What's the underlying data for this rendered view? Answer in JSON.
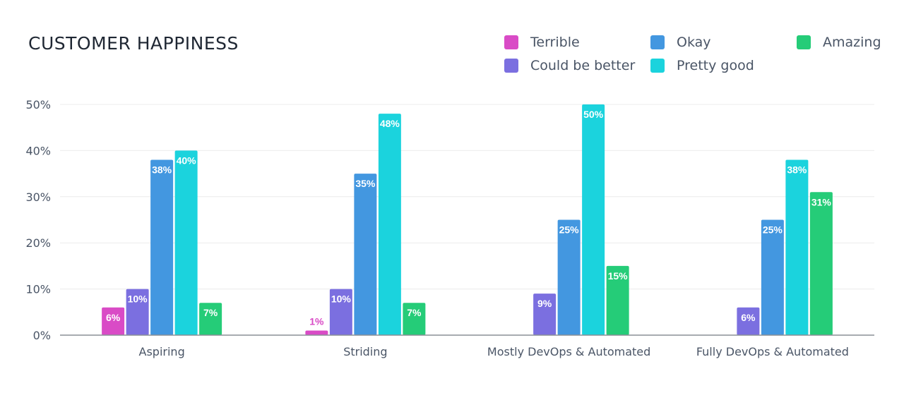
{
  "chart_data": {
    "type": "bar",
    "title": "CUSTOMER HAPPINESS",
    "categories": [
      "Aspiring",
      "Striding",
      "Mostly DevOps & Automated",
      "Fully DevOps & Automated"
    ],
    "ylim": [
      0,
      50
    ],
    "yticks": [
      0,
      10,
      20,
      30,
      40,
      50
    ],
    "ytick_labels": [
      "0%",
      "10%",
      "20%",
      "30%",
      "40%",
      "50%"
    ],
    "grid": true,
    "legend_placement": "top-right",
    "series": [
      {
        "name": "Terrible",
        "color": "#d94bc6",
        "values": [
          6,
          1,
          null,
          null
        ],
        "labels": [
          "6%",
          "1%",
          "",
          ""
        ]
      },
      {
        "name": "Could be better",
        "color": "#7b6fe0",
        "values": [
          10,
          10,
          9,
          6
        ],
        "labels": [
          "10%",
          "10%",
          "9%",
          "6%"
        ]
      },
      {
        "name": "Okay",
        "color": "#4397e0",
        "values": [
          38,
          35,
          25,
          25
        ],
        "labels": [
          "38%",
          "35%",
          "25%",
          "25%"
        ]
      },
      {
        "name": "Pretty good",
        "color": "#1bd3dd",
        "values": [
          40,
          48,
          50,
          38
        ],
        "labels": [
          "40%",
          "48%",
          "50%",
          "38%"
        ]
      },
      {
        "name": "Amazing",
        "color": "#25cc78",
        "values": [
          7,
          7,
          15,
          31
        ],
        "labels": [
          "7%",
          "7%",
          "15%",
          "31%"
        ]
      }
    ]
  }
}
